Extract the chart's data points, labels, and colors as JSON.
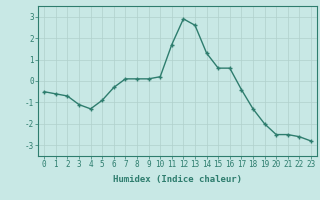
{
  "x": [
    0,
    1,
    2,
    3,
    4,
    5,
    6,
    7,
    8,
    9,
    10,
    11,
    12,
    13,
    14,
    15,
    16,
    17,
    18,
    19,
    20,
    21,
    22,
    23
  ],
  "y": [
    -0.5,
    -0.6,
    -0.7,
    -1.1,
    -1.3,
    -0.9,
    -0.3,
    0.1,
    0.1,
    0.1,
    0.2,
    1.7,
    2.9,
    2.6,
    1.3,
    0.6,
    0.6,
    -0.4,
    -1.3,
    -2.0,
    -2.5,
    -2.5,
    -2.6,
    -2.8
  ],
  "line_color": "#2e7d6e",
  "marker": "+",
  "marker_size": 3,
  "background_color": "#c8e8e5",
  "grid_color": "#b0d0cc",
  "xlabel": "Humidex (Indice chaleur)",
  "ylim": [
    -3.5,
    3.5
  ],
  "xlim": [
    -0.5,
    23.5
  ],
  "yticks": [
    -3,
    -2,
    -1,
    0,
    1,
    2,
    3
  ],
  "xticks": [
    0,
    1,
    2,
    3,
    4,
    5,
    6,
    7,
    8,
    9,
    10,
    11,
    12,
    13,
    14,
    15,
    16,
    17,
    18,
    19,
    20,
    21,
    22,
    23
  ],
  "tick_color": "#2e7d6e",
  "label_color": "#2e7d6e",
  "xlabel_fontsize": 6.5,
  "tick_fontsize": 5.5,
  "line_width": 1.0
}
